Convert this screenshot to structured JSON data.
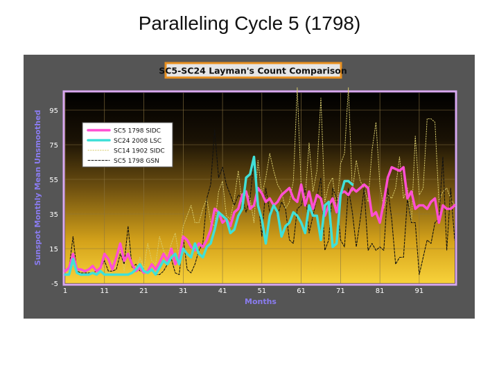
{
  "slide": {
    "title": "Paralleling Cycle 5 (1798)"
  },
  "chart_data": {
    "type": "line",
    "title": "SC5-SC24 Layman's Count Comparison",
    "xlabel": "Months",
    "ylabel": "Sunspot Monthly Mean Unsmoothed",
    "xlim": [
      1,
      100
    ],
    "ylim": [
      -5,
      105
    ],
    "xticks": [
      1,
      11,
      21,
      31,
      41,
      51,
      61,
      71,
      81,
      91
    ],
    "yticks": [
      -5,
      15,
      35,
      55,
      75,
      95
    ],
    "grid": true,
    "legend_position": "top-left",
    "background": "dark gradient to yellow",
    "series": [
      {
        "name": "SC5    1798 SIDC",
        "color": "#ff4fd2",
        "style": "solid-thick",
        "x": [
          1,
          2,
          3,
          4,
          5,
          6,
          7,
          8,
          9,
          10,
          11,
          12,
          13,
          14,
          15,
          16,
          17,
          18,
          19,
          20,
          21,
          22,
          23,
          24,
          25,
          26,
          27,
          28,
          29,
          30,
          31,
          32,
          33,
          34,
          35,
          36,
          37,
          38,
          39,
          40,
          41,
          42,
          43,
          44,
          45,
          46,
          47,
          48,
          49,
          50,
          51,
          52,
          53,
          54,
          55,
          56,
          57,
          58,
          59,
          60,
          61,
          62,
          63,
          64,
          65,
          66,
          67,
          68,
          69,
          70,
          71,
          72,
          73,
          74,
          75,
          76,
          77,
          78,
          79,
          80,
          81,
          82,
          83,
          84,
          85,
          86,
          87,
          88,
          89,
          90,
          91,
          92,
          93,
          94,
          95,
          96,
          97,
          98,
          99,
          100
        ],
        "y": [
          2,
          4,
          12,
          3,
          3,
          2,
          3,
          5,
          2,
          4,
          12,
          9,
          3,
          10,
          18,
          8,
          12,
          6,
          2,
          4,
          1,
          2,
          6,
          3,
          7,
          12,
          8,
          15,
          6,
          10,
          22,
          20,
          16,
          14,
          18,
          16,
          20,
          26,
          38,
          36,
          30,
          32,
          28,
          36,
          38,
          46,
          48,
          38,
          40,
          50,
          47,
          42,
          44,
          40,
          42,
          46,
          48,
          50,
          44,
          42,
          52,
          40,
          48,
          38,
          46,
          44,
          34,
          40,
          44,
          36,
          47,
          48,
          46,
          50,
          48,
          50,
          52,
          50,
          34,
          36,
          30,
          42,
          56,
          62,
          61,
          60,
          62,
          44,
          48,
          38,
          40,
          40,
          38,
          42,
          44,
          30,
          40,
          38,
          38,
          40
        ]
      },
      {
        "name": "SC24  2008 LSC",
        "color": "#40e0d8",
        "style": "solid-thick",
        "x": [
          1,
          2,
          3,
          4,
          5,
          6,
          7,
          8,
          9,
          10,
          11,
          12,
          13,
          14,
          15,
          16,
          17,
          18,
          19,
          20,
          21,
          22,
          23,
          24,
          25,
          26,
          27,
          28,
          29,
          30,
          31,
          32,
          33,
          34,
          35,
          36,
          37,
          38,
          39,
          40,
          41,
          42,
          43,
          44,
          45,
          46,
          47,
          48,
          49,
          50,
          51,
          52,
          53,
          54,
          55,
          56,
          57,
          58,
          59,
          60,
          61,
          62,
          63,
          64,
          65,
          66,
          67,
          68,
          69,
          70,
          71,
          72,
          73,
          74
        ],
        "y": [
          0,
          0,
          9,
          1,
          0,
          0,
          0,
          1,
          0,
          2,
          0,
          0,
          0,
          0,
          0,
          0,
          0,
          1,
          3,
          6,
          2,
          1,
          3,
          0,
          4,
          8,
          6,
          10,
          12,
          6,
          15,
          12,
          10,
          18,
          12,
          10,
          16,
          18,
          26,
          36,
          34,
          32,
          24,
          26,
          34,
          38,
          56,
          58,
          68,
          40,
          32,
          18,
          34,
          40,
          36,
          22,
          28,
          30,
          36,
          34,
          30,
          24,
          40,
          34,
          34,
          20,
          40,
          42,
          16,
          18,
          46,
          54,
          54,
          52
        ]
      },
      {
        "name": "SC14  1902 SIDC",
        "color": "#d8cc6c",
        "style": "dotted",
        "x": [
          1,
          2,
          3,
          4,
          5,
          6,
          7,
          8,
          9,
          10,
          11,
          12,
          13,
          14,
          15,
          16,
          17,
          18,
          19,
          20,
          21,
          22,
          23,
          24,
          25,
          26,
          27,
          28,
          29,
          30,
          31,
          32,
          33,
          34,
          35,
          36,
          37,
          38,
          39,
          40,
          41,
          42,
          43,
          44,
          45,
          46,
          47,
          48,
          49,
          50,
          51,
          52,
          53,
          54,
          55,
          56,
          57,
          58,
          59,
          60,
          61,
          62,
          63,
          64,
          65,
          66,
          67,
          68,
          69,
          70,
          71,
          72,
          73,
          74,
          75,
          76,
          77,
          78,
          79,
          80,
          81,
          82,
          83,
          84,
          85,
          86,
          87,
          88,
          89,
          90,
          91,
          92,
          93,
          94,
          95,
          96,
          97,
          98,
          99,
          100
        ],
        "y": [
          0,
          1,
          6,
          0,
          3,
          0,
          2,
          1,
          0,
          6,
          3,
          0,
          8,
          3,
          14,
          2,
          20,
          5,
          2,
          10,
          4,
          18,
          8,
          6,
          22,
          14,
          10,
          18,
          24,
          10,
          28,
          34,
          40,
          30,
          30,
          38,
          44,
          30,
          28,
          48,
          54,
          34,
          32,
          44,
          60,
          40,
          48,
          44,
          30,
          66,
          46,
          56,
          70,
          60,
          52,
          48,
          38,
          42,
          54,
          108,
          50,
          44,
          76,
          48,
          60,
          102,
          42,
          52,
          56,
          36,
          64,
          70,
          108,
          48,
          66,
          54,
          50,
          42,
          72,
          88,
          52,
          38,
          46,
          44,
          50,
          68,
          44,
          50,
          30,
          80,
          46,
          50,
          90,
          90,
          88,
          42,
          48,
          50,
          44,
          40
        ]
      },
      {
        "name": "SC5    1798 GSN",
        "color": "#111111",
        "style": "dashed",
        "x": [
          1,
          2,
          3,
          4,
          5,
          6,
          7,
          8,
          9,
          10,
          11,
          12,
          13,
          14,
          15,
          16,
          17,
          18,
          19,
          20,
          21,
          22,
          23,
          24,
          25,
          26,
          27,
          28,
          29,
          30,
          31,
          32,
          33,
          34,
          35,
          36,
          37,
          38,
          39,
          40,
          41,
          42,
          43,
          44,
          45,
          46,
          47,
          48,
          49,
          50,
          51,
          52,
          53,
          54,
          55,
          56,
          57,
          58,
          59,
          60,
          61,
          62,
          63,
          64,
          65,
          66,
          67,
          68,
          69,
          70,
          71,
          72,
          73,
          74,
          75,
          76,
          77,
          78,
          79,
          80,
          81,
          82,
          83,
          84,
          85,
          86,
          87,
          88,
          89,
          90,
          91,
          92,
          93,
          94,
          95,
          96,
          97,
          98,
          99,
          100
        ],
        "y": [
          2,
          4,
          22,
          2,
          1,
          1,
          1,
          1,
          2,
          4,
          8,
          2,
          2,
          3,
          12,
          6,
          28,
          4,
          6,
          2,
          2,
          2,
          3,
          0,
          0,
          2,
          6,
          9,
          1,
          0,
          22,
          3,
          1,
          6,
          14,
          18,
          44,
          52,
          84,
          56,
          62,
          52,
          46,
          40,
          46,
          44,
          36,
          44,
          66,
          44,
          22,
          50,
          36,
          40,
          34,
          42,
          38,
          20,
          18,
          38,
          40,
          50,
          24,
          34,
          44,
          56,
          14,
          20,
          50,
          44,
          20,
          16,
          50,
          36,
          16,
          32,
          50,
          14,
          18,
          14,
          16,
          14,
          50,
          32,
          6,
          10,
          10,
          44,
          30,
          30,
          0,
          10,
          20,
          18,
          30,
          32,
          68,
          14,
          50,
          20
        ]
      }
    ]
  }
}
